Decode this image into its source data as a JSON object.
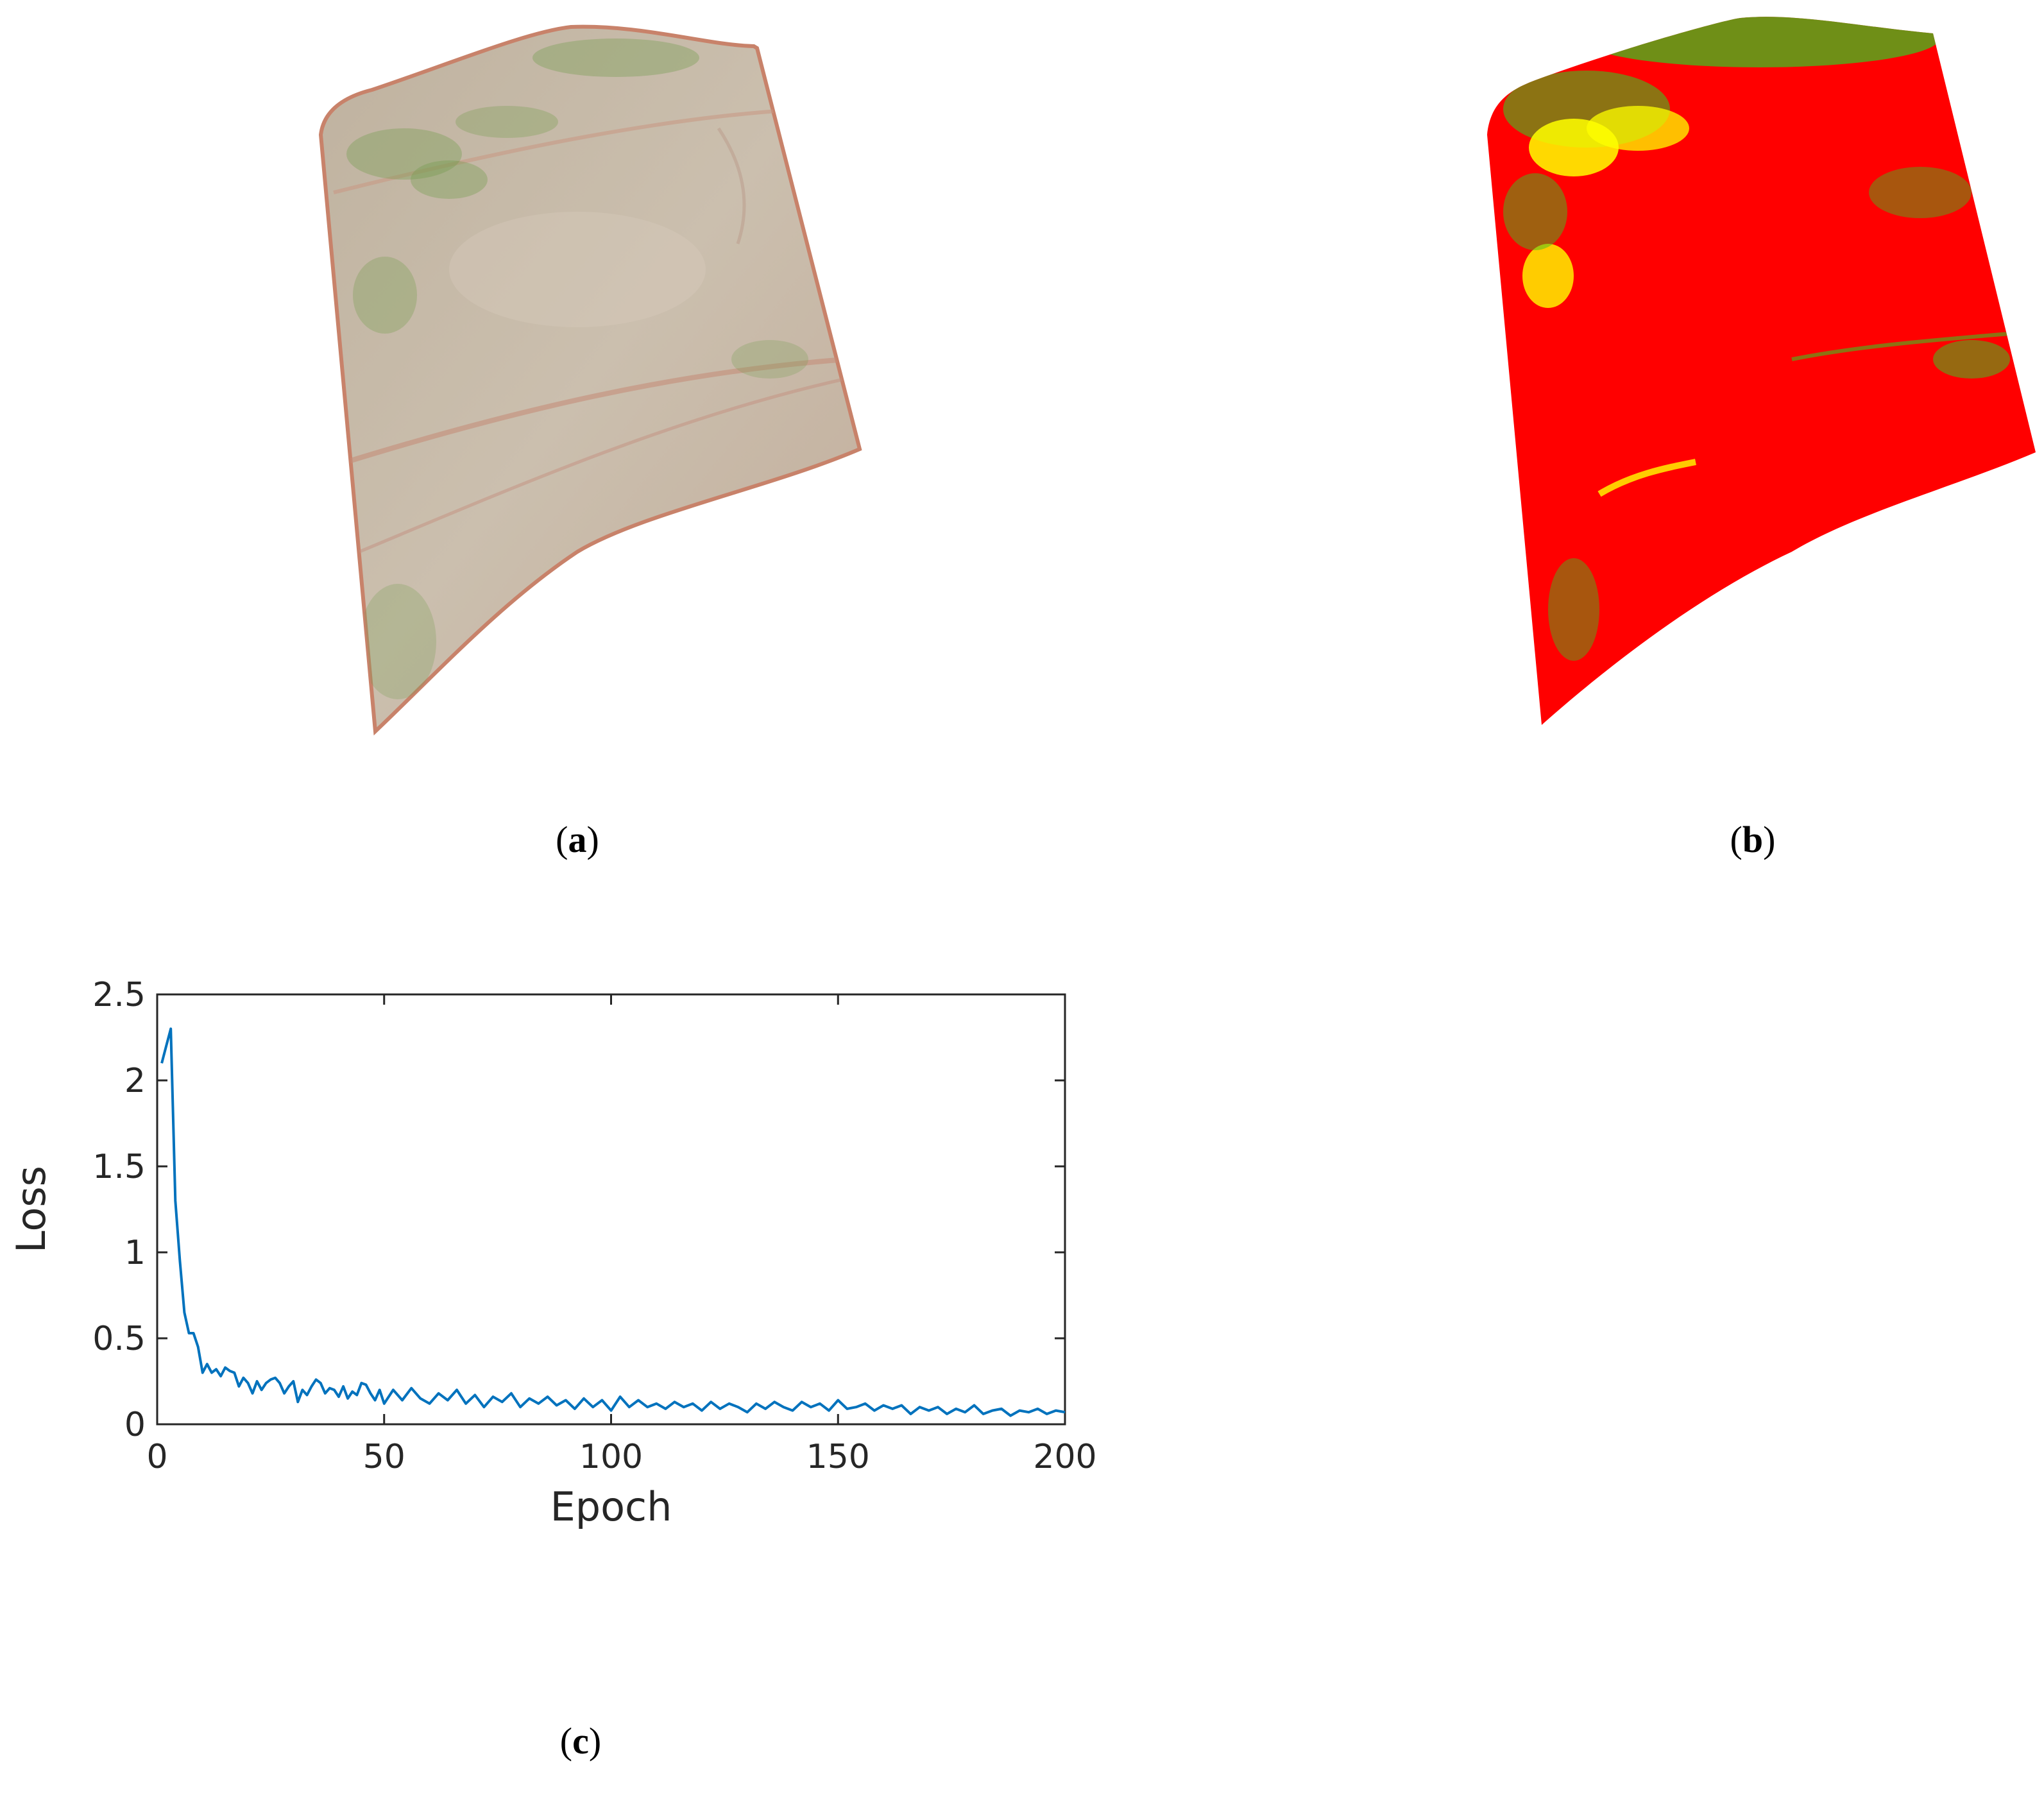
{
  "figure": {
    "panels": [
      {
        "label": "a",
        "kind": "image",
        "description_colors": {
          "field": "#c7b9a6",
          "vegetation": "#5e8f3a",
          "edge": "#c8826a"
        }
      },
      {
        "label": "b",
        "kind": "image",
        "description_colors": {
          "background": "#ff0000",
          "class_green": "#3fbf1f",
          "class_yellow": "#ffff00"
        }
      },
      {
        "label": "c",
        "kind": "chart"
      }
    ]
  },
  "chart_data": {
    "type": "line",
    "title": "",
    "xlabel": "Epoch",
    "ylabel": "Loss",
    "xlim": [
      0,
      200
    ],
    "ylim": [
      0,
      2.5
    ],
    "xticks": [
      "0",
      "50",
      "100",
      "150",
      "200"
    ],
    "yticks": [
      "0",
      "0.5",
      "1",
      "1.5",
      "2",
      "2.5"
    ],
    "grid": false,
    "legend": "none",
    "series": [
      {
        "color": "#0072bd",
        "x": [
          1,
          2,
          3,
          4,
          5,
          6,
          7,
          8,
          9,
          10,
          11,
          12,
          13,
          14,
          15,
          16,
          17,
          18,
          19,
          20,
          21,
          22,
          23,
          24,
          25,
          26,
          27,
          28,
          29,
          30,
          31,
          32,
          33,
          34,
          35,
          36,
          37,
          38,
          39,
          40,
          41,
          42,
          43,
          44,
          45,
          46,
          47,
          48,
          49,
          50,
          52,
          54,
          56,
          58,
          60,
          62,
          64,
          66,
          68,
          70,
          72,
          74,
          76,
          78,
          80,
          82,
          84,
          86,
          88,
          90,
          92,
          94,
          96,
          98,
          100,
          102,
          104,
          106,
          108,
          110,
          112,
          114,
          116,
          118,
          120,
          122,
          124,
          126,
          128,
          130,
          132,
          134,
          136,
          138,
          140,
          142,
          144,
          146,
          148,
          150,
          152,
          154,
          156,
          158,
          160,
          162,
          164,
          166,
          168,
          170,
          172,
          174,
          176,
          178,
          180,
          182,
          184,
          186,
          188,
          190,
          192,
          194,
          196,
          198,
          200
        ],
        "y": [
          2.1,
          2.2,
          2.3,
          1.3,
          0.95,
          0.65,
          0.53,
          0.53,
          0.45,
          0.3,
          0.35,
          0.3,
          0.32,
          0.28,
          0.33,
          0.31,
          0.3,
          0.22,
          0.27,
          0.24,
          0.18,
          0.25,
          0.2,
          0.24,
          0.26,
          0.27,
          0.24,
          0.18,
          0.22,
          0.25,
          0.13,
          0.2,
          0.17,
          0.22,
          0.26,
          0.24,
          0.18,
          0.21,
          0.2,
          0.16,
          0.22,
          0.15,
          0.19,
          0.17,
          0.24,
          0.23,
          0.18,
          0.14,
          0.2,
          0.12,
          0.2,
          0.14,
          0.21,
          0.15,
          0.12,
          0.18,
          0.14,
          0.2,
          0.12,
          0.17,
          0.1,
          0.16,
          0.13,
          0.18,
          0.1,
          0.15,
          0.12,
          0.16,
          0.11,
          0.14,
          0.09,
          0.15,
          0.1,
          0.14,
          0.08,
          0.16,
          0.1,
          0.14,
          0.1,
          0.12,
          0.09,
          0.13,
          0.1,
          0.12,
          0.08,
          0.13,
          0.09,
          0.12,
          0.1,
          0.07,
          0.12,
          0.09,
          0.13,
          0.1,
          0.08,
          0.13,
          0.1,
          0.12,
          0.08,
          0.14,
          0.09,
          0.1,
          0.12,
          0.08,
          0.11,
          0.09,
          0.11,
          0.06,
          0.1,
          0.08,
          0.1,
          0.06,
          0.09,
          0.07,
          0.11,
          0.06,
          0.08,
          0.09,
          0.05,
          0.08,
          0.07,
          0.09,
          0.06,
          0.08,
          0.07
        ]
      }
    ]
  }
}
